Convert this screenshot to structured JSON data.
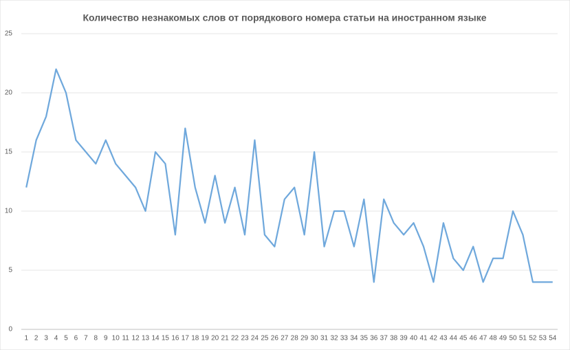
{
  "chart_data": {
    "type": "line",
    "title": "Количество незнакомых слов от порядкового номера статьи на иностранном языке",
    "categories": [
      "1",
      "2",
      "3",
      "4",
      "5",
      "6",
      "7",
      "8",
      "9",
      "10",
      "11",
      "12",
      "13",
      "14",
      "15",
      "16",
      "17",
      "18",
      "19",
      "20",
      "21",
      "22",
      "23",
      "24",
      "25",
      "26",
      "27",
      "28",
      "29",
      "30",
      "31",
      "32",
      "33",
      "34",
      "35",
      "36",
      "37",
      "38",
      "39",
      "40",
      "41",
      "42",
      "43",
      "44",
      "45",
      "46",
      "47",
      "48",
      "49",
      "50",
      "51",
      "52",
      "53",
      "54"
    ],
    "values": [
      12,
      16,
      18,
      22,
      20,
      16,
      15,
      14,
      16,
      14,
      13,
      12,
      10,
      15,
      14,
      8,
      17,
      12,
      9,
      13,
      9,
      12,
      8,
      16,
      8,
      7,
      11,
      12,
      8,
      15,
      7,
      10,
      10,
      7,
      11,
      4,
      11,
      9,
      8,
      9,
      7,
      4,
      9,
      6,
      5,
      7,
      4,
      6,
      6,
      10,
      8,
      4,
      4,
      4
    ],
    "color": "#6fa8dc",
    "ylim": [
      0,
      25
    ],
    "yticks": [
      0,
      5,
      10,
      15,
      20,
      25
    ],
    "grid": true
  }
}
